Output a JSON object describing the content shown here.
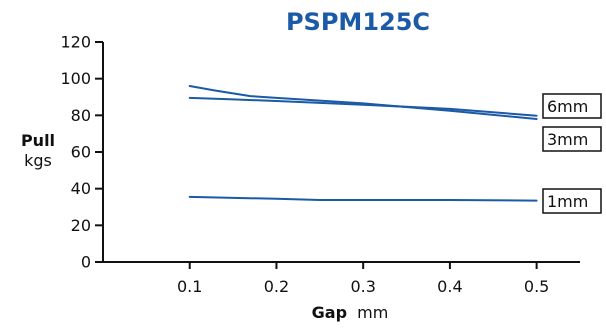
{
  "chart_data": {
    "type": "line",
    "title": "PSPM125C",
    "xlabel": {
      "bold": "Gap",
      "normal": "mm"
    },
    "ylabel": {
      "bold": "Pull",
      "normal": "kgs"
    },
    "xlim": [
      0,
      0.55
    ],
    "ylim": [
      0,
      120
    ],
    "xticks": [
      0.1,
      0.2,
      0.3,
      0.4,
      0.5
    ],
    "xtick_labels": [
      "0.1",
      "0.2",
      "0.3",
      "0.4",
      "0.5"
    ],
    "yticks": [
      0,
      20,
      40,
      60,
      80,
      100,
      120
    ],
    "ytick_labels": [
      "0",
      "20",
      "40",
      "60",
      "80",
      "100",
      "120"
    ],
    "grid": false,
    "series": [
      {
        "name": "6mm",
        "x": [
          0.1,
          0.15,
          0.2,
          0.3,
          0.4,
          0.5
        ],
        "values": [
          89.5,
          88.7,
          87.8,
          85.8,
          83.5,
          79.8
        ]
      },
      {
        "name": "3mm",
        "x": [
          0.1,
          0.13,
          0.17,
          0.2,
          0.3,
          0.4,
          0.5
        ],
        "values": [
          96.0,
          93.5,
          90.5,
          89.5,
          86.5,
          82.5,
          78.0
        ]
      },
      {
        "name": "1mm",
        "x": [
          0.1,
          0.2,
          0.25,
          0.3,
          0.4,
          0.5
        ],
        "values": [
          35.5,
          34.5,
          33.8,
          33.8,
          33.8,
          33.5
        ]
      }
    ]
  },
  "colors": {
    "title": "#1a5aa6",
    "series_line": "#1a5aa6",
    "axis": "#111111"
  }
}
